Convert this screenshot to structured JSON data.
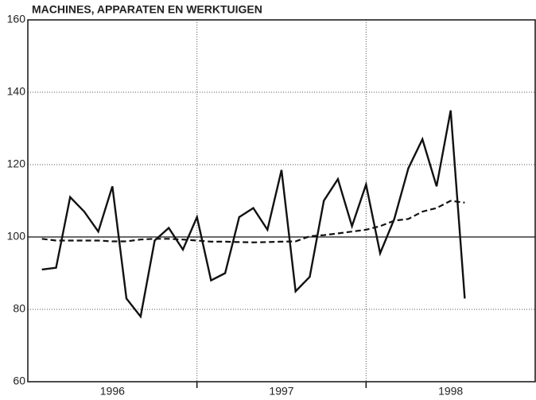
{
  "chart_data": {
    "type": "line",
    "title": "MACHINES, APPARATEN EN WERKTUIGEN",
    "x": [
      1996.0833,
      1996.1667,
      1996.25,
      1996.3333,
      1996.4167,
      1996.5,
      1996.5833,
      1996.6667,
      1996.75,
      1996.8333,
      1996.9167,
      1997.0,
      1997.0833,
      1997.1667,
      1997.25,
      1997.3333,
      1997.4167,
      1997.5,
      1997.5833,
      1997.6667,
      1997.75,
      1997.8333,
      1997.9167,
      1998.0,
      1998.0833,
      1998.1667,
      1998.25,
      1998.3333,
      1998.4167,
      1998.5,
      1998.5833
    ],
    "series": [
      {
        "color": "#111111",
        "dash": false,
        "values": [
          91,
          91.5,
          111,
          107,
          101.5,
          114,
          83,
          78,
          99,
          102.5,
          96.5,
          105.5,
          88,
          90,
          105.5,
          108,
          102,
          118.5,
          85,
          89,
          110,
          116,
          103,
          114.5,
          95.5,
          105,
          119,
          127,
          114,
          135,
          83
        ]
      },
      {
        "color": "#111111",
        "dash": true,
        "values": [
          99.5,
          99,
          99,
          99,
          99,
          98.8,
          98.8,
          99.3,
          99.5,
          99.5,
          99.3,
          99,
          98.7,
          98.7,
          98.6,
          98.5,
          98.6,
          98.7,
          98.8,
          100.2,
          100.5,
          101,
          101.5,
          102,
          103,
          104.5,
          105,
          107,
          108,
          110,
          109.5
        ]
      }
    ],
    "xlim": [
      1996,
      1999
    ],
    "xticks": [
      {
        "value": 1996.5,
        "label": "1996"
      },
      {
        "value": 1997.5,
        "label": "1997"
      },
      {
        "value": 1998.5,
        "label": "1998"
      }
    ],
    "xgrid": [
      1997,
      1998
    ],
    "ylim": [
      60,
      160
    ],
    "yticks": [
      60,
      80,
      100,
      120,
      140,
      160
    ],
    "hline": 100,
    "grid": true
  }
}
